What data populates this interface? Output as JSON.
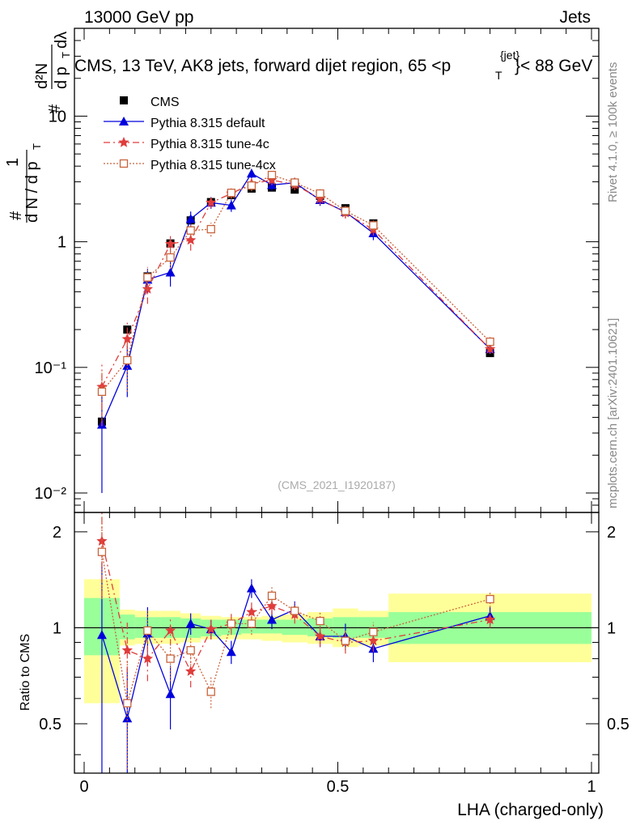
{
  "header": {
    "left": "13000 GeV pp",
    "right": "Jets",
    "title_main": "CMS, 13 TeV, AK8 jets, forward dijet region, 65 <p",
    "title_sup": "{jet}",
    "title_sub": "T",
    "title_end": "}< 88 GeV"
  },
  "side": {
    "rivet": "Rivet 4.1.0, ≥ 100k events",
    "mcplots": "mcplots.cern.ch [arXiv:2401.10621]"
  },
  "watermark": "(CMS_2021_I1920187)",
  "ylabel": {
    "one": "1",
    "dN": "d N / d p",
    "dN_sub": "T",
    "hash1": "#",
    "hash2": "#",
    "numer": "d²N",
    "denom": "d p",
    "denom_sub": "T",
    "dlam": "dλ"
  },
  "ratio_ylabel": "Ratio to CMS",
  "xlabel": "LHA (charged-only)",
  "legend": {
    "cms": "CMS",
    "default": "Pythia 8.315 default",
    "tune4c": "Pythia 8.315 tune-4c",
    "tune4cx": "Pythia 8.315 tune-4cx"
  },
  "colors": {
    "cms": "#000000",
    "default": "#0000dd",
    "tune4c": "#e03c3c",
    "tune4cx": "#c8643c",
    "band_green": "#99ff99",
    "band_yellow": "#ffff99"
  },
  "chart_data": {
    "type": "scatter",
    "title": "CMS, 13 TeV, AK8 jets, forward dijet region, 65 < p_T^{jet} < 88 GeV",
    "xlabel": "LHA (charged-only)",
    "ylabel": "1/(dN/dp_T) d²N/(dp_T dλ)",
    "xlim": [
      -0.03,
      1.01
    ],
    "ylim": [
      0.007,
      50
    ],
    "yscale": "log",
    "ratio_ylim": [
      0.35,
      2.3
    ],
    "x_ticks": [
      "0",
      "0.5",
      "1"
    ],
    "y_ticks": [
      "10⁻²",
      "10⁻¹",
      "1",
      "10"
    ],
    "ratio_ticks": [
      "0.5",
      "1",
      "2"
    ],
    "bins": [
      0,
      0.07,
      0.1,
      0.15,
      0.19,
      0.23,
      0.27,
      0.31,
      0.35,
      0.39,
      0.44,
      0.49,
      0.54,
      0.6,
      1.0
    ],
    "x": [
      0.035,
      0.085,
      0.125,
      0.17,
      0.21,
      0.25,
      0.29,
      0.33,
      0.37,
      0.415,
      0.465,
      0.515,
      0.57,
      0.8
    ],
    "cms": [
      0.037,
      0.2,
      0.53,
      0.97,
      1.48,
      2.07,
      2.35,
      2.65,
      2.7,
      2.6,
      2.32,
      1.85,
      1.4,
      0.13
    ],
    "ratio_band_green": [
      [
        0.82,
        1.24
      ],
      [
        0.92,
        1.1
      ],
      [
        0.93,
        1.08
      ],
      [
        0.93,
        1.08
      ],
      [
        0.93,
        1.07
      ],
      [
        0.94,
        1.06
      ],
      [
        0.95,
        1.06
      ],
      [
        0.96,
        1.06
      ],
      [
        0.96,
        1.06
      ],
      [
        0.95,
        1.06
      ],
      [
        0.94,
        1.07
      ],
      [
        0.93,
        1.08
      ],
      [
        0.93,
        1.08
      ],
      [
        0.89,
        1.12
      ]
    ],
    "ratio_band_yellow": [
      [
        0.58,
        1.42
      ],
      [
        0.88,
        1.14
      ],
      [
        0.89,
        1.13
      ],
      [
        0.89,
        1.13
      ],
      [
        0.9,
        1.11
      ],
      [
        0.92,
        1.09
      ],
      [
        0.92,
        1.08
      ],
      [
        0.92,
        1.08
      ],
      [
        0.91,
        1.09
      ],
      [
        0.9,
        1.1
      ],
      [
        0.89,
        1.12
      ],
      [
        0.87,
        1.15
      ],
      [
        0.88,
        1.13
      ],
      [
        0.78,
        1.28
      ]
    ],
    "series": [
      {
        "name": "Pythia 8.315 default",
        "y": [
          0.035,
          0.103,
          0.5,
          0.57,
          1.52,
          2.05,
          1.95,
          3.5,
          2.83,
          2.95,
          2.15,
          1.73,
          1.17,
          0.14
        ],
        "err": [
          0.025,
          0.045,
          0.11,
          0.13,
          0.22,
          0.22,
          0.22,
          0.3,
          0.28,
          0.28,
          0.22,
          0.18,
          0.14,
          0.012
        ],
        "ratio": [
          0.95,
          0.52,
          0.96,
          0.62,
          1.03,
          0.99,
          0.84,
          1.33,
          1.06,
          1.14,
          0.94,
          0.94,
          0.86,
          1.09
        ],
        "ratio_err": [
          0.65,
          0.23,
          0.2,
          0.14,
          0.08,
          0.07,
          0.07,
          0.09,
          0.07,
          0.07,
          0.07,
          0.09,
          0.08,
          0.07
        ]
      },
      {
        "name": "Pythia 8.315 tune-4c",
        "y": [
          0.07,
          0.168,
          0.42,
          0.96,
          1.03,
          2.05,
          2.42,
          2.9,
          3.1,
          2.85,
          2.2,
          1.7,
          1.25,
          0.14
        ],
        "err": [
          0.035,
          0.06,
          0.1,
          0.15,
          0.18,
          0.2,
          0.22,
          0.28,
          0.28,
          0.28,
          0.22,
          0.17,
          0.13,
          0.012
        ],
        "ratio": [
          1.87,
          0.85,
          0.8,
          0.98,
          0.73,
          0.99,
          1.03,
          1.12,
          1.17,
          1.1,
          0.94,
          0.9,
          0.91,
          1.06
        ],
        "ratio_err": [
          0.62,
          0.2,
          0.12,
          0.1,
          0.08,
          0.07,
          0.07,
          0.08,
          0.07,
          0.07,
          0.07,
          0.07,
          0.07,
          0.06
        ]
      },
      {
        "name": "Pythia 8.315 tune-4cx",
        "y": [
          0.064,
          0.114,
          0.52,
          0.75,
          1.23,
          1.26,
          2.45,
          2.8,
          3.4,
          2.96,
          2.42,
          1.76,
          1.35,
          0.16
        ],
        "err": [
          0.03,
          0.05,
          0.11,
          0.14,
          0.18,
          0.16,
          0.22,
          0.28,
          0.3,
          0.28,
          0.22,
          0.17,
          0.13,
          0.015
        ],
        "ratio": [
          1.73,
          0.58,
          0.98,
          0.8,
          0.85,
          0.63,
          1.03,
          1.03,
          1.26,
          1.13,
          1.05,
          0.91,
          0.97,
          1.23
        ],
        "ratio_err": [
          0.5,
          0.22,
          0.15,
          0.12,
          0.09,
          0.07,
          0.08,
          0.08,
          0.08,
          0.07,
          0.07,
          0.07,
          0.07,
          0.07
        ]
      }
    ]
  }
}
